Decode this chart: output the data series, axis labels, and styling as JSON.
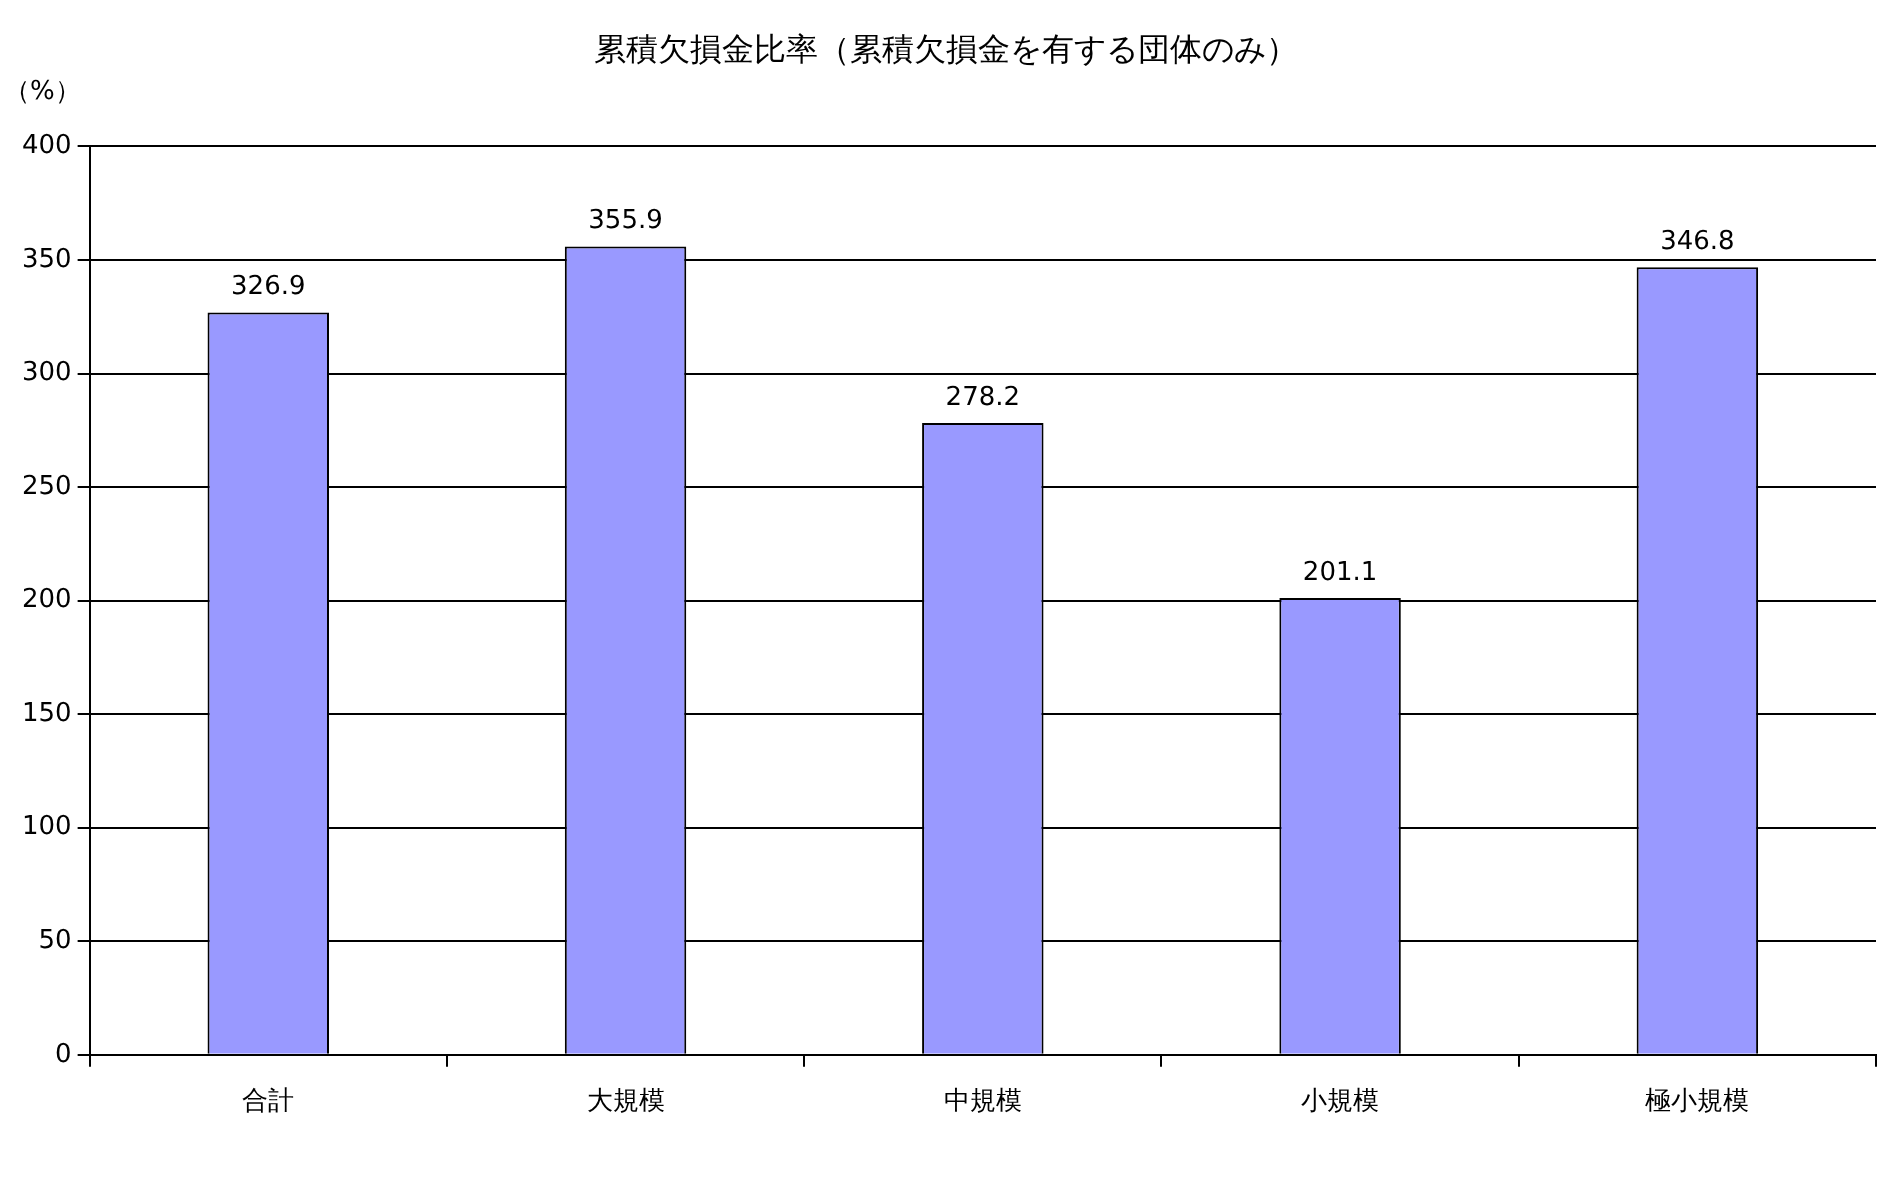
{
  "chart_data": {
    "type": "bar",
    "title": "累積欠損金比率（累積欠損金を有する団体のみ）",
    "ylabel": "（%）",
    "categories": [
      "合計",
      "大規模",
      "中規模",
      "小規模",
      "極小規模"
    ],
    "values": [
      326.9,
      355.9,
      278.2,
      201.1,
      346.8
    ],
    "color": "#9999ff",
    "ylim": [
      0,
      400
    ],
    "yticks": [
      0,
      50,
      100,
      150,
      200,
      250,
      300,
      350,
      400
    ],
    "grid": "y",
    "data_labels": true,
    "legend": false
  }
}
